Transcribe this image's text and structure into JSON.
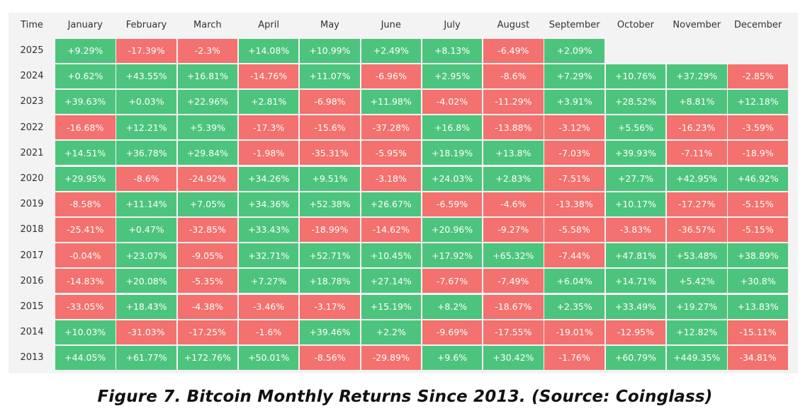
{
  "caption": "Figure 7. Bitcoin Monthly Returns Since 2013. (Source: Coinglass)",
  "colors": {
    "positive": "#4dc47d",
    "negative": "#f3716e",
    "background": "#f3f3f4"
  },
  "chart_data": {
    "type": "table",
    "title": "",
    "row_header": "Time",
    "columns": [
      "January",
      "February",
      "March",
      "April",
      "May",
      "June",
      "July",
      "August",
      "September",
      "October",
      "November",
      "December"
    ],
    "rows": [
      {
        "year": "2025",
        "values": [
          "+9.29%",
          "-17.39%",
          "-2.3%",
          "+14.08%",
          "+10.99%",
          "+2.49%",
          "+8.13%",
          "-6.49%",
          "+2.09%",
          null,
          null,
          null
        ]
      },
      {
        "year": "2024",
        "values": [
          "+0.62%",
          "+43.55%",
          "+16.81%",
          "-14.76%",
          "+11.07%",
          "-6.96%",
          "+2.95%",
          "-8.6%",
          "+7.29%",
          "+10.76%",
          "+37.29%",
          "-2.85%"
        ]
      },
      {
        "year": "2023",
        "values": [
          "+39.63%",
          "+0.03%",
          "+22.96%",
          "+2.81%",
          "-6.98%",
          "+11.98%",
          "-4.02%",
          "-11.29%",
          "+3.91%",
          "+28.52%",
          "+8.81%",
          "+12.18%"
        ]
      },
      {
        "year": "2022",
        "values": [
          "-16.68%",
          "+12.21%",
          "+5.39%",
          "-17.3%",
          "-15.6%",
          "-37.28%",
          "+16.8%",
          "-13.88%",
          "-3.12%",
          "+5.56%",
          "-16.23%",
          "-3.59%"
        ]
      },
      {
        "year": "2021",
        "values": [
          "+14.51%",
          "+36.78%",
          "+29.84%",
          "-1.98%",
          "-35.31%",
          "-5.95%",
          "+18.19%",
          "+13.8%",
          "-7.03%",
          "+39.93%",
          "-7.11%",
          "-18.9%"
        ]
      },
      {
        "year": "2020",
        "values": [
          "+29.95%",
          "-8.6%",
          "-24.92%",
          "+34.26%",
          "+9.51%",
          "-3.18%",
          "+24.03%",
          "+2.83%",
          "-7.51%",
          "+27.7%",
          "+42.95%",
          "+46.92%"
        ]
      },
      {
        "year": "2019",
        "values": [
          "-8.58%",
          "+11.14%",
          "+7.05%",
          "+34.36%",
          "+52.38%",
          "+26.67%",
          "-6.59%",
          "-4.6%",
          "-13.38%",
          "+10.17%",
          "-17.27%",
          "-5.15%"
        ]
      },
      {
        "year": "2018",
        "values": [
          "-25.41%",
          "+0.47%",
          "-32.85%",
          "+33.43%",
          "-18.99%",
          "-14.62%",
          "+20.96%",
          "-9.27%",
          "-5.58%",
          "-3.83%",
          "-36.57%",
          "-5.15%"
        ]
      },
      {
        "year": "2017",
        "values": [
          "-0.04%",
          "+23.07%",
          "-9.05%",
          "+32.71%",
          "+52.71%",
          "+10.45%",
          "+17.92%",
          "+65.32%",
          "-7.44%",
          "+47.81%",
          "+53.48%",
          "+38.89%"
        ]
      },
      {
        "year": "2016",
        "values": [
          "-14.83%",
          "+20.08%",
          "-5.35%",
          "+7.27%",
          "+18.78%",
          "+27.14%",
          "-7.67%",
          "-7.49%",
          "+6.04%",
          "+14.71%",
          "+5.42%",
          "+30.8%"
        ]
      },
      {
        "year": "2015",
        "values": [
          "-33.05%",
          "+18.43%",
          "-4.38%",
          "-3.46%",
          "-3.17%",
          "+15.19%",
          "+8.2%",
          "-18.67%",
          "+2.35%",
          "+33.49%",
          "+19.27%",
          "+13.83%"
        ]
      },
      {
        "year": "2014",
        "values": [
          "+10.03%",
          "-31.03%",
          "-17.25%",
          "-1.6%",
          "+39.46%",
          "+2.2%",
          "-9.69%",
          "-17.55%",
          "-19.01%",
          "-12.95%",
          "+12.82%",
          "-15.11%"
        ]
      },
      {
        "year": "2013",
        "values": [
          "+44.05%",
          "+61.77%",
          "+172.76%",
          "+50.01%",
          "-8.56%",
          "-29.89%",
          "+9.6%",
          "+30.42%",
          "-1.76%",
          "+60.79%",
          "+449.35%",
          "-34.81%"
        ]
      }
    ]
  }
}
